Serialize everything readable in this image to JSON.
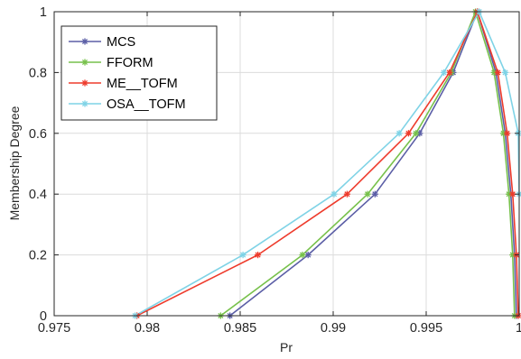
{
  "chart_data": {
    "type": "line",
    "title": "",
    "xlabel": "Pr",
    "ylabel": "Membership Degree",
    "xlim": [
      0.975,
      1
    ],
    "ylim": [
      0,
      1
    ],
    "xticks": [
      0.975,
      0.98,
      0.985,
      0.99,
      0.995,
      1
    ],
    "xtick_labels": [
      "0.975",
      "0.98",
      "0.985",
      "0.99",
      "0.995",
      "1"
    ],
    "yticks": [
      0,
      0.2,
      0.4,
      0.6,
      0.8,
      1
    ],
    "ytick_labels": [
      "0",
      "0.2",
      "0.4",
      "0.6",
      "0.8",
      "1"
    ],
    "grid": true,
    "legend_position": "top-left",
    "series": [
      {
        "name": "MCS",
        "color": "#5b5ea6",
        "marker": "asterisk",
        "points": [
          [
            0.98445,
            0
          ],
          [
            0.98865,
            0.2
          ],
          [
            0.99225,
            0.4
          ],
          [
            0.99465,
            0.6
          ],
          [
            0.99645,
            0.8
          ],
          [
            0.99775,
            1.0
          ],
          [
            0.99875,
            0.8
          ],
          [
            0.99925,
            0.6
          ],
          [
            0.99955,
            0.4
          ],
          [
            0.99975,
            0.2
          ],
          [
            0.99985,
            0
          ]
        ]
      },
      {
        "name": "FFORM",
        "color": "#77c14b",
        "marker": "asterisk",
        "points": [
          [
            0.98395,
            0
          ],
          [
            0.98835,
            0.2
          ],
          [
            0.99185,
            0.4
          ],
          [
            0.99445,
            0.6
          ],
          [
            0.99635,
            0.8
          ],
          [
            0.99765,
            1.0
          ],
          [
            0.99865,
            0.8
          ],
          [
            0.99915,
            0.6
          ],
          [
            0.99945,
            0.4
          ],
          [
            0.99965,
            0.2
          ],
          [
            0.99975,
            0
          ]
        ]
      },
      {
        "name": "ME__TOFM",
        "color": "#ee3b2c",
        "marker": "asterisk",
        "points": [
          [
            0.97945,
            0
          ],
          [
            0.98595,
            0.2
          ],
          [
            0.99075,
            0.4
          ],
          [
            0.99405,
            0.6
          ],
          [
            0.99625,
            0.8
          ],
          [
            0.99775,
            1.0
          ],
          [
            0.99885,
            0.8
          ],
          [
            0.99935,
            0.6
          ],
          [
            0.99965,
            0.4
          ],
          [
            0.99985,
            0.2
          ],
          [
            0.99995,
            0
          ]
        ]
      },
      {
        "name": "OSA__TOFM",
        "color": "#7fd3e6",
        "marker": "asterisk",
        "points": [
          [
            0.97935,
            0
          ],
          [
            0.98515,
            0.2
          ],
          [
            0.99005,
            0.4
          ],
          [
            0.99355,
            0.6
          ],
          [
            0.99595,
            0.8
          ],
          [
            0.99785,
            1.0
          ],
          [
            0.99925,
            0.8
          ],
          [
            0.99995,
            0.6
          ],
          [
            1.0,
            0.4
          ]
        ]
      }
    ]
  }
}
